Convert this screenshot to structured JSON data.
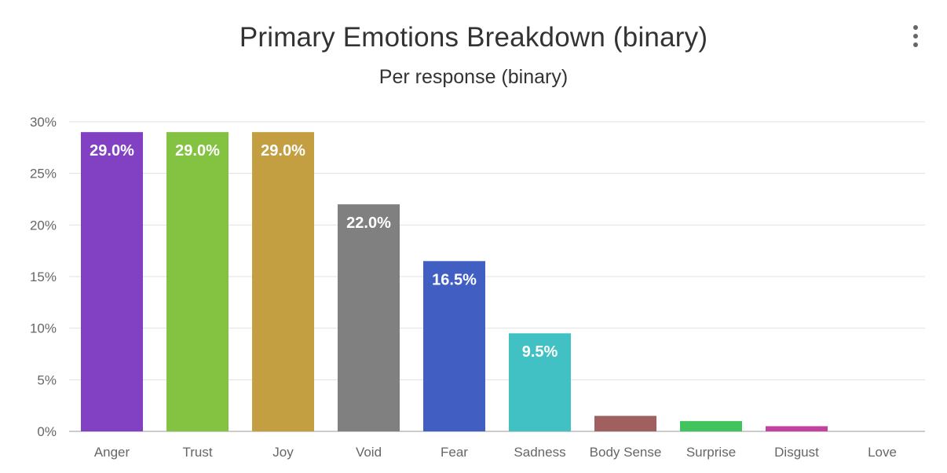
{
  "header": {
    "title": "Primary Emotions Breakdown (binary)",
    "subtitle": "Per response (binary)",
    "menu_icon": "vertical-ellipsis-icon"
  },
  "chart_data": {
    "type": "bar",
    "title": "Primary Emotions Breakdown (binary)",
    "subtitle": "Per response (binary)",
    "xlabel": "",
    "ylabel": "",
    "ylim": [
      0,
      30
    ],
    "yticks": [
      "0%",
      "5%",
      "10%",
      "15%",
      "20%",
      "25%",
      "30%"
    ],
    "grid": true,
    "categories": [
      "Anger",
      "Trust",
      "Joy",
      "Void",
      "Fear",
      "Sadness",
      "Body Sense",
      "Surprise",
      "Disgust",
      "Love"
    ],
    "values": [
      29.0,
      29.0,
      29.0,
      22.0,
      16.5,
      9.5,
      1.5,
      1.0,
      0.5,
      0.0
    ],
    "data_labels": [
      "29.0%",
      "29.0%",
      "29.0%",
      "22.0%",
      "16.5%",
      "9.5%",
      "",
      "",
      "",
      ""
    ],
    "colors": [
      "#8241c3",
      "#84c341",
      "#c39f41",
      "#808080",
      "#415ec3",
      "#41c1c3",
      "#a06060",
      "#41c35d",
      "#c341a0",
      "#cccccc"
    ]
  }
}
